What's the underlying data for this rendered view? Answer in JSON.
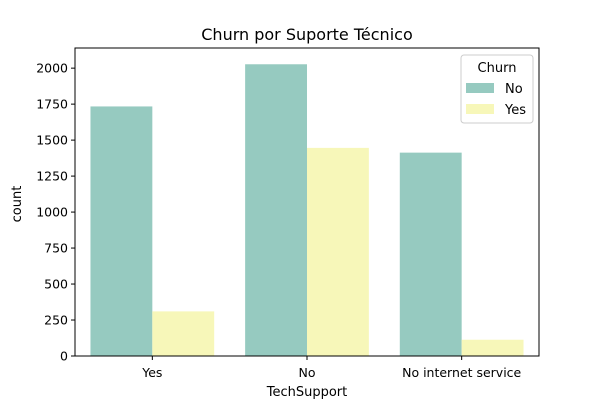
{
  "chart_data": {
    "type": "bar",
    "title": "Churn por Suporte Técnico",
    "xlabel": "TechSupport",
    "ylabel": "count",
    "categories": [
      "Yes",
      "No",
      "No internet service"
    ],
    "series": [
      {
        "name": "No",
        "values": [
          1734,
          2027,
          1413
        ],
        "color": "#96cac0"
      },
      {
        "name": "Yes",
        "values": [
          310,
          1446,
          113
        ],
        "color": "#f7f7b9"
      }
    ],
    "ylim": [
      0,
      2140
    ],
    "yticks": [
      0,
      250,
      500,
      750,
      1000,
      1250,
      1500,
      1750,
      2000
    ],
    "legend": {
      "title": "Churn",
      "placement": "top-right"
    },
    "grid": false
  }
}
